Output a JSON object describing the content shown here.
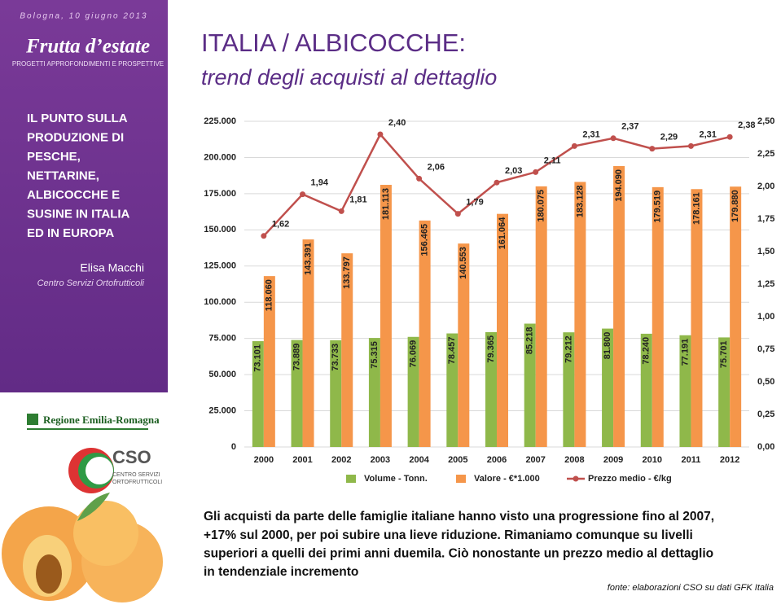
{
  "slide": {
    "date": "Bologna, 10 giugno 2013",
    "brand": "Frutta d’estate",
    "brand_sub": "PROGETTI APPROFONDIMENTI E PROSPETTIVE",
    "topic_lines": [
      "IL PUNTO SULLA",
      "PRODUZIONE DI",
      "PESCHE,",
      "NETTARINE,",
      "ALBICOCCHE E",
      "SUSINE IN ITALIA",
      "ED IN EUROPA"
    ],
    "author": "Elisa Macchi",
    "author_org": "Centro Servizi Ortofrutticoli",
    "logo_region": "Regione Emilia-Romagna",
    "logo_cso": "CSO",
    "logo_cso_sub": [
      "CENTRO SERVIZI",
      "ORTOFRUTTICOLI"
    ],
    "title": "ITALIA / ALBICOCCHE:",
    "subtitle": "trend degli acquisti al dettaglio",
    "paragraph_lines": [
      "Gli acquisti da parte delle famiglie italiane hanno visto una progressione fino al 2007,",
      "+17% sul 2000, per poi subire una lieve riduzione. Rimaniamo comunque su livelli",
      "superiori a quelli dei primi anni duemila. Ciò nonostante un prezzo medio al dettaglio",
      "in tendenziale incremento"
    ],
    "source": "fonte: elaborazioni CSO su dati GFK Italia"
  },
  "chart_data": {
    "type": "bar",
    "categories": [
      "2000",
      "2001",
      "2002",
      "2003",
      "2004",
      "2005",
      "2006",
      "2007",
      "2008",
      "2009",
      "2010",
      "2011",
      "2012"
    ],
    "series": [
      {
        "name": "Volume - Tonn.",
        "color": "#8fb84a",
        "values": [
          73101,
          73889,
          73733,
          75315,
          76069,
          78457,
          79365,
          85218,
          79212,
          81800,
          78240,
          77191,
          75701
        ],
        "value_labels": [
          "73.101",
          "73.889",
          "73.733",
          "75.315",
          "76.069",
          "78.457",
          "79.365",
          "85.218",
          "79.212",
          "81.800",
          "78.240",
          "77.191",
          "75.701"
        ]
      },
      {
        "name": "Valore - €*1.000",
        "color": "#f5964a",
        "values": [
          118060,
          143391,
          133797,
          181113,
          156465,
          140553,
          161064,
          180075,
          183128,
          194090,
          179519,
          178161,
          179880
        ],
        "value_labels": [
          "118.060",
          "143.391",
          "133.797",
          "181.113",
          "156.465",
          "140.553",
          "161.064",
          "180.075",
          "183.128",
          "194.090",
          "179.519",
          "178.161",
          "179.880"
        ]
      },
      {
        "name": "Prezzo medio - €/kg",
        "color": "#c0504d",
        "type": "line",
        "axis": "y2",
        "values": [
          1.62,
          1.94,
          1.81,
          2.4,
          2.06,
          1.79,
          2.03,
          2.11,
          2.31,
          2.37,
          2.29,
          2.31,
          2.38
        ],
        "value_labels": [
          "1,62",
          "1,94",
          "1,81",
          "2,40",
          "2,06",
          "1,79",
          "2,03",
          "2,11",
          "2,31",
          "2,37",
          "2,29",
          "2,31",
          "2,38"
        ]
      }
    ],
    "ylim": [
      0,
      225000
    ],
    "yticks": [
      0,
      {
        "value": 25000,
        "label": "25.000"
      },
      {
        "value": 50000,
        "label": "50.000"
      },
      {
        "value": 75000,
        "label": "75.000"
      },
      {
        "value": 100000,
        "label": "100.000"
      },
      {
        "value": 125000,
        "label": "125.000"
      },
      {
        "value": 150000,
        "label": "150.000"
      },
      {
        "value": 175000,
        "label": "175.000"
      },
      {
        "value": 200000,
        "label": "200.000"
      },
      {
        "value": 225000,
        "label": "225.000"
      }
    ],
    "y2lim": [
      0,
      2.5
    ],
    "y2ticks": [
      {
        "value": 0,
        "label": "0,00"
      },
      {
        "value": 0.25,
        "label": "0,25"
      },
      {
        "value": 0.5,
        "label": "0,50"
      },
      {
        "value": 0.75,
        "label": "0,75"
      },
      {
        "value": 1,
        "label": "1,00"
      },
      {
        "value": 1.25,
        "label": "1,25"
      },
      {
        "value": 1.5,
        "label": "1,50"
      },
      {
        "value": 1.75,
        "label": "1,75"
      },
      {
        "value": 2,
        "label": "2,00"
      },
      {
        "value": 2.25,
        "label": "2,25"
      },
      {
        "value": 2.5,
        "label": "2,50"
      }
    ],
    "grid": true
  }
}
